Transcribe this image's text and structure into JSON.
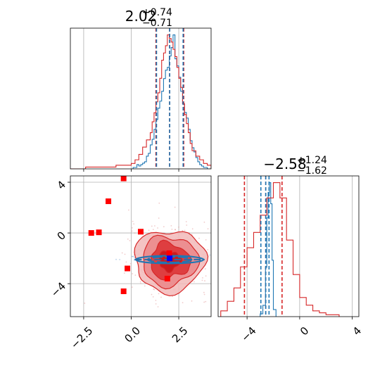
{
  "chart_data": [
    {
      "type": "histogram",
      "panel": "top-left",
      "title_main": "2.02",
      "title_sup": "+0.74",
      "title_sub": "−0.71",
      "xlim": [
        -3.2,
        4.2
      ],
      "xticks": [
        -2.5,
        0.0,
        2.5
      ],
      "grid": true,
      "series": [
        {
          "color": "#1f77b4",
          "bin_edges": [
            0.0,
            0.1,
            0.2,
            0.3,
            0.4,
            0.5,
            0.6,
            0.7,
            0.8,
            0.9,
            1.0,
            1.1,
            1.2,
            1.3,
            1.4,
            1.5,
            1.6,
            1.7,
            1.8,
            1.9,
            2.0,
            2.1,
            2.2,
            2.3,
            2.4,
            2.5,
            2.6,
            2.7,
            2.8,
            2.9,
            3.0,
            3.1,
            3.2,
            3.3,
            3.4,
            3.5,
            3.6,
            3.7,
            3.8,
            3.9,
            4.0,
            4.1,
            4.2
          ],
          "counts": [
            0,
            1,
            1,
            3,
            2,
            3,
            4,
            5,
            9,
            11,
            17,
            21,
            28,
            35,
            43,
            48,
            55,
            64,
            70,
            72,
            80,
            86,
            95,
            78,
            73,
            65,
            55,
            46,
            40,
            36,
            28,
            20,
            15,
            12,
            8,
            5,
            3,
            2,
            1,
            1,
            0,
            0
          ]
        },
        {
          "color": "#d62728",
          "bin_edges": [
            -3.2,
            -2.8,
            -2.4,
            -2.0,
            -1.6,
            -1.2,
            -0.8,
            -0.4,
            0.0,
            0.2,
            0.4,
            0.6,
            0.8,
            1.0,
            1.1,
            1.2,
            1.3,
            1.4,
            1.5,
            1.6,
            1.7,
            1.8,
            1.9,
            2.0,
            2.1,
            2.2,
            2.3,
            2.4,
            2.5,
            2.6,
            2.7,
            2.8,
            2.9,
            3.0,
            3.1,
            3.2,
            3.4,
            3.6,
            3.8,
            4.0,
            4.2
          ],
          "counts": [
            0,
            0,
            1,
            1,
            1,
            1,
            2,
            2,
            3,
            5,
            8,
            12,
            16,
            20,
            26,
            31,
            37,
            42,
            50,
            60,
            64,
            68,
            74,
            72,
            70,
            66,
            62,
            56,
            50,
            45,
            36,
            30,
            25,
            20,
            14,
            10,
            7,
            5,
            3,
            2
          ]
        }
      ],
      "quantiles": [
        {
          "color": "#d62728",
          "values": [
            1.3,
            2.02,
            2.76
          ]
        },
        {
          "color": "#1f77b4",
          "values": [
            1.33,
            2.02,
            2.73
          ]
        }
      ]
    },
    {
      "type": "histogram",
      "panel": "bottom-right",
      "title_main": "−2.58",
      "title_sup": "+1.24",
      "title_sub": "−1.62",
      "xlim": [
        -6.2,
        4.5
      ],
      "xticks": [
        -4,
        0,
        4
      ],
      "grid": true,
      "series": [
        {
          "color": "#1f77b4",
          "bin_edges": [
            -3.0,
            -2.8,
            -2.6,
            -2.5,
            -2.4,
            -2.3,
            -2.2,
            -2.1,
            -2.0,
            -1.8
          ],
          "counts": [
            2,
            8,
            35,
            70,
            88,
            95,
            80,
            40,
            5
          ]
        },
        {
          "color": "#d62728",
          "bin_edges": [
            -6.0,
            -5.5,
            -5.0,
            -4.5,
            -4.0,
            -3.5,
            -3.0,
            -2.5,
            -2.0,
            -1.5,
            -1.0,
            -0.5,
            0.0,
            0.5,
            1.0,
            1.5,
            2.0,
            3.0
          ],
          "counts": [
            0.3,
            0.8,
            1.5,
            2.6,
            3.6,
            4.4,
            5.3,
            6.2,
            7.0,
            6.2,
            4.0,
            2.2,
            1.0,
            0.6,
            0.3,
            0.2,
            0.1
          ]
        }
      ],
      "quantiles": [
        {
          "color": "#d62728",
          "values": [
            -4.2,
            -2.58,
            -1.34
          ]
        },
        {
          "color": "#1f77b4",
          "values": [
            -2.95,
            -2.58,
            -2.33
          ]
        }
      ]
    },
    {
      "type": "scatter",
      "panel": "bottom-left",
      "xlim": [
        -3.2,
        4.2
      ],
      "ylim": [
        -6.6,
        4.5
      ],
      "xticks": [
        -2.5,
        0.0,
        2.5
      ],
      "yticks": [
        -4,
        0,
        4
      ],
      "grid": true,
      "red_points": [
        {
          "x": -0.4,
          "y": 4.3
        },
        {
          "x": -1.2,
          "y": 2.5
        },
        {
          "x": -2.1,
          "y": 0.0
        },
        {
          "x": -1.7,
          "y": 0.05
        },
        {
          "x": 0.5,
          "y": 0.1
        },
        {
          "x": -0.2,
          "y": -2.8
        },
        {
          "x": -0.4,
          "y": -4.6
        },
        {
          "x": 2.0,
          "y": -1.6
        },
        {
          "x": 1.9,
          "y": -3.6
        }
      ],
      "blue_point": {
        "x": 2.02,
        "y": -2.0
      },
      "density_red": {
        "cx": 2.02,
        "cy": -2.2,
        "sx": 0.95,
        "sy": 1.25
      },
      "density_blue": {
        "cx": 2.02,
        "cy": -2.1,
        "sx": 1.15,
        "sy": 0.1
      }
    }
  ]
}
